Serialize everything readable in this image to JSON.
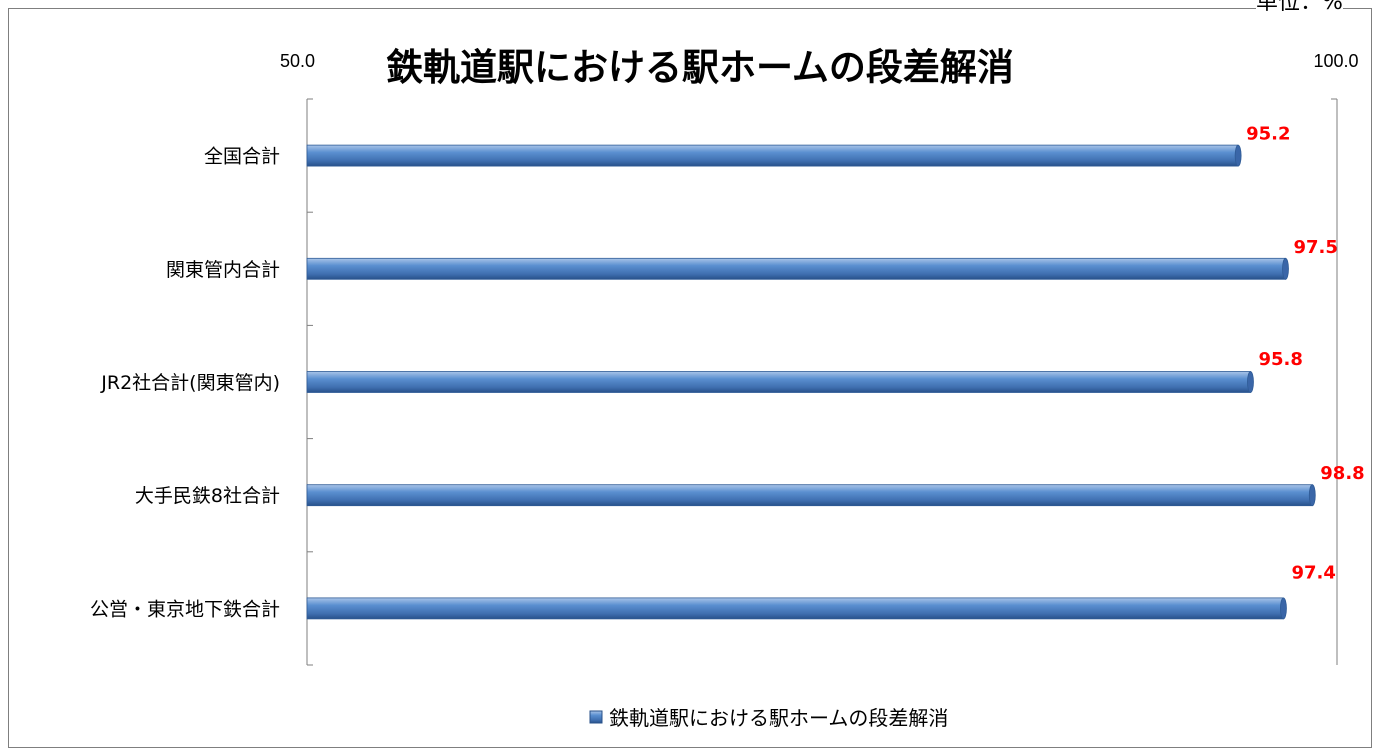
{
  "unit_label": "単位：%",
  "chart_data": {
    "type": "bar",
    "orientation": "horizontal",
    "title": "鉄軌道駅における駅ホームの段差解消",
    "xlabel": "",
    "ylabel": "",
    "xlim": [
      50.0,
      100.0
    ],
    "tick_labels": [
      "50.0",
      "100.0"
    ],
    "categories": [
      "全国合計",
      "関東管内合計",
      "JR2社合計(関東管内)",
      "大手民鉄8社合計",
      "公営・東京地下鉄合計"
    ],
    "series": [
      {
        "name": "鉄軌道駅における駅ホームの段差解消",
        "values": [
          95.2,
          97.5,
          95.8,
          98.8,
          97.4
        ],
        "data_labels": [
          "95.2",
          "97.5",
          "95.8",
          "98.8",
          "97.4"
        ]
      }
    ],
    "grid": false,
    "legend_position": "bottom",
    "colors": {
      "bar": "#4f81bd",
      "data_label": "#ff0000"
    }
  }
}
